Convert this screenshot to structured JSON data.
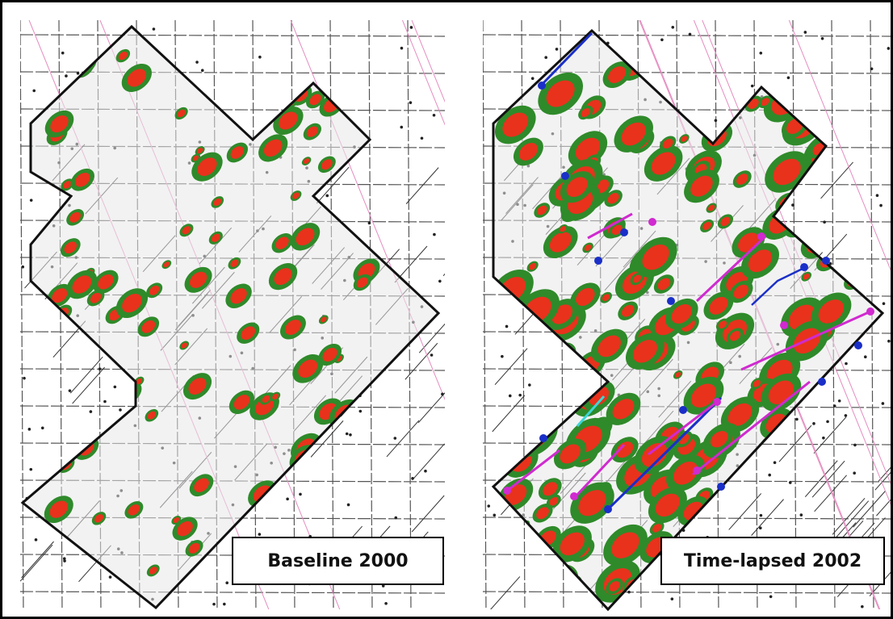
{
  "panels": [
    {
      "label": "Baseline 2000"
    },
    {
      "label": "Time-lapsed 2002"
    }
  ]
}
